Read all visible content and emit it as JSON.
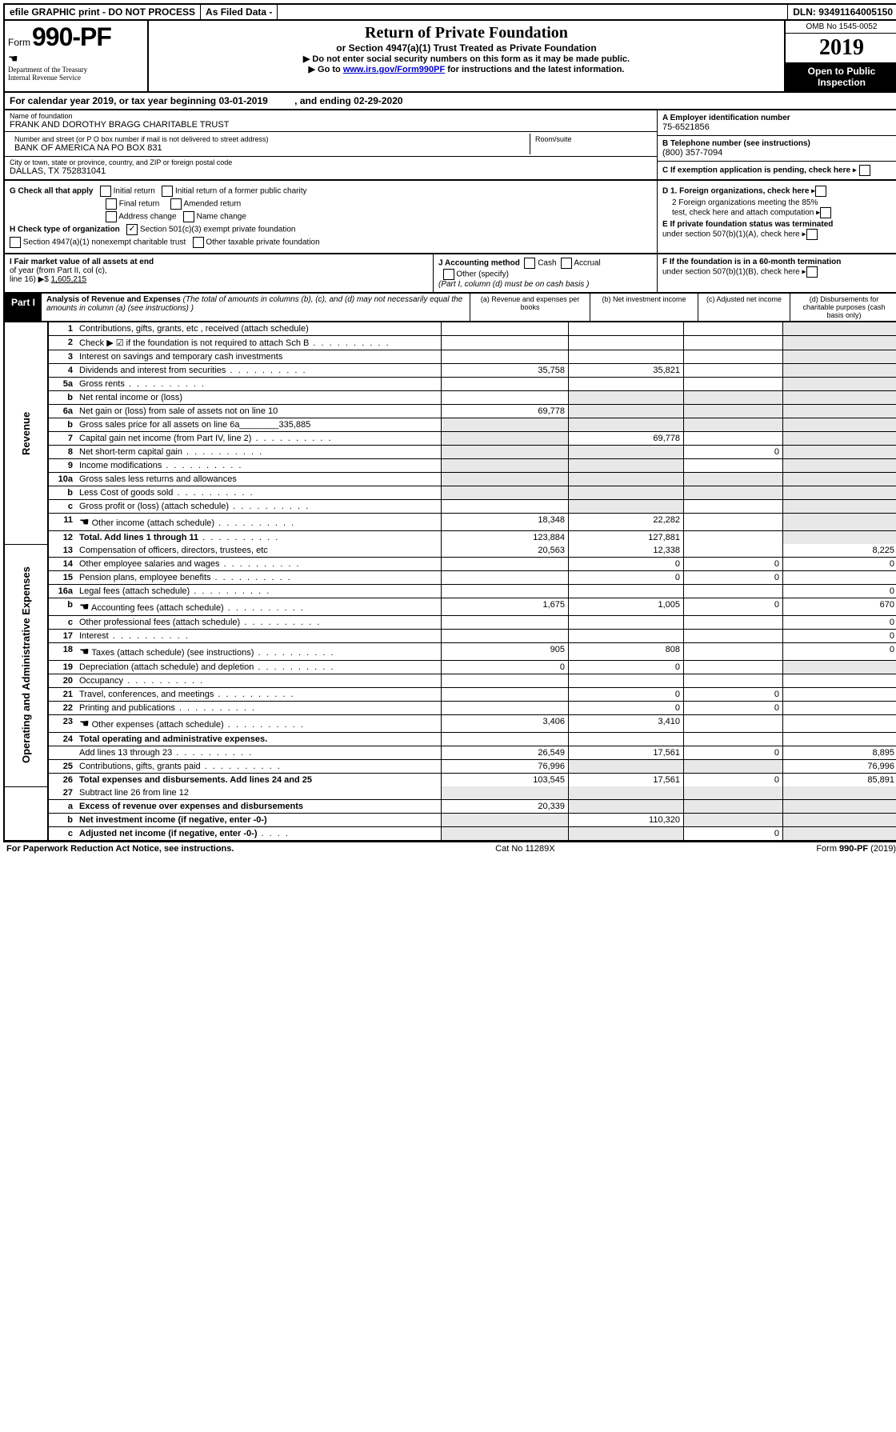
{
  "header": {
    "efile_label": "efile GRAPHIC print - DO NOT PROCESS",
    "as_filed_label": "As Filed Data -",
    "dln_label": "DLN: 93491164005150",
    "form_word": "Form",
    "form_number": "990-PF",
    "dept1": "Department of the Treasury",
    "dept2": "Internal Revenue Service",
    "title": "Return of Private Foundation",
    "subtitle": "or Section 4947(a)(1) Trust Treated as Private Foundation",
    "instr1": "▶ Do not enter social security numbers on this form as it may be made public.",
    "instr2_prefix": "▶ Go to ",
    "instr2_link": "www.irs.gov/Form990PF",
    "instr2_suffix": " for instructions and the latest information.",
    "omb": "OMB No 1545-0052",
    "year": "2019",
    "open_inspect1": "Open to Public",
    "open_inspect2": "Inspection"
  },
  "calyear": {
    "text1": "For calendar year 2019, or tax year beginning 03-01-2019",
    "text2": ", and ending 02-29-2020"
  },
  "meta": {
    "name_label": "Name of foundation",
    "name_value": "FRANK AND DOROTHY BRAGG CHARITABLE TRUST",
    "ein_label": "A Employer identification number",
    "ein_value": "75-6521856",
    "street_label": "Number and street (or P O  box number if mail is not delivered to street address)",
    "street_value": "BANK OF AMERICA NA PO BOX 831",
    "room_label": "Room/suite",
    "tel_label": "B Telephone number (see instructions)",
    "tel_value": "(800) 357-7094",
    "city_label": "City or town, state or province, country, and ZIP or foreign postal code",
    "city_value": "DALLAS, TX  752831041",
    "c_pending": "C If exemption application is pending, check here"
  },
  "checks": {
    "g_label": "G Check all that apply",
    "initial": "Initial return",
    "initial_former": "Initial return of a former public charity",
    "final": "Final return",
    "amended": "Amended return",
    "addr_change": "Address change",
    "name_change": "Name change",
    "h_label": "H Check type of organization",
    "h_501c3": "Section 501(c)(3) exempt private foundation",
    "h_4947": "Section 4947(a)(1) nonexempt charitable trust",
    "h_other_tax": "Other taxable private foundation",
    "d1": "D 1. Foreign organizations, check here",
    "d2a": "2 Foreign organizations meeting the 85%",
    "d2b": "test, check here and attach computation",
    "e1": "E  If private foundation status was terminated",
    "e2": "under section 507(b)(1)(A), check here"
  },
  "ijf": {
    "i1": "I Fair market value of all assets at end",
    "i2": "of year (from Part II, col  (c),",
    "i3": "line 16) ▶$ ",
    "i_value": "1,605,215",
    "j_label": "J Accounting method",
    "j_cash": "Cash",
    "j_accrual": "Accrual",
    "j_other": "Other (specify)",
    "j_note": "(Part I, column (d) must be on cash basis )",
    "f1": "F  If the foundation is in a 60-month termination",
    "f2": "under section 507(b)(1)(B), check here"
  },
  "part1": {
    "label": "Part I",
    "title": "Analysis of Revenue and Expenses",
    "title_note": " (The total of amounts in columns (b), (c), and (d) may not necessarily equal the amounts in column (a) (see instructions) )",
    "col_a": "(a)  Revenue and expenses per books",
    "col_b": "(b) Net investment income",
    "col_c": "(c) Adjusted net income",
    "col_d": "(d) Disbursements for charitable purposes (cash basis only)"
  },
  "side": {
    "revenue": "Revenue",
    "expenses": "Operating and Administrative Expenses"
  },
  "rows": [
    {
      "n": "1",
      "d": "Contributions, gifts, grants, etc , received (attach schedule)"
    },
    {
      "n": "2",
      "d": "Check ▶ ☑ if the foundation is not required to attach Sch B",
      "dots": true,
      "notreq": true
    },
    {
      "n": "3",
      "d": "Interest on savings and temporary cash investments"
    },
    {
      "n": "4",
      "d": "Dividends and interest from securities",
      "dots": true,
      "a": "35,758",
      "b": "35,821"
    },
    {
      "n": "5a",
      "d": "Gross rents",
      "dots": true
    },
    {
      "n": "b",
      "d": "Net rental income or (loss)",
      "shade_bcd": true
    },
    {
      "n": "6a",
      "d": "Net gain or (loss) from sale of assets not on line 10",
      "a": "69,778",
      "shade_bcd": true
    },
    {
      "n": "b",
      "d": "Gross sales price for all assets on line 6a________335,885",
      "shade_all": true
    },
    {
      "n": "7",
      "d": "Capital gain net income (from Part IV, line 2)",
      "dots": true,
      "b": "69,778",
      "shade_a": true
    },
    {
      "n": "8",
      "d": "Net short-term capital gain",
      "dots": true,
      "c": "0",
      "shade_ab": true
    },
    {
      "n": "9",
      "d": "Income modifications",
      "dots": true,
      "shade_ab": true
    },
    {
      "n": "10a",
      "d": "Gross sales less returns and allowances",
      "shade_all": true
    },
    {
      "n": "b",
      "d": "Less  Cost of goods sold",
      "dots": true,
      "shade_all": true
    },
    {
      "n": "c",
      "d": "Gross profit or (loss) (attach schedule)",
      "dots": true,
      "shade_b": true
    },
    {
      "n": "11",
      "d": "Other income (attach schedule)",
      "dots": true,
      "icon": true,
      "a": "18,348",
      "b": "22,282"
    },
    {
      "n": "12",
      "d": "Total. Add lines 1 through 11",
      "dots": true,
      "bold": true,
      "a": "123,884",
      "b": "127,881",
      "shade_cd": false
    }
  ],
  "exp_rows": [
    {
      "n": "13",
      "d": "Compensation of officers, directors, trustees, etc",
      "a": "20,563",
      "b": "12,338",
      "dcol": "8,225"
    },
    {
      "n": "14",
      "d": "Other employee salaries and wages",
      "dots": true,
      "b": "0",
      "c": "0",
      "dcol": "0"
    },
    {
      "n": "15",
      "d": "Pension plans, employee benefits",
      "dots": true,
      "b": "0",
      "c": "0"
    },
    {
      "n": "16a",
      "d": "Legal fees (attach schedule)",
      "dots": true,
      "dcol": "0"
    },
    {
      "n": "b",
      "d": "Accounting fees (attach schedule)",
      "dots": true,
      "icon": true,
      "a": "1,675",
      "b": "1,005",
      "c": "0",
      "dcol": "670"
    },
    {
      "n": "c",
      "d": "Other professional fees (attach schedule)",
      "dots": true,
      "dcol": "0"
    },
    {
      "n": "17",
      "d": "Interest",
      "dots": true,
      "dcol": "0"
    },
    {
      "n": "18",
      "d": "Taxes (attach schedule) (see instructions)",
      "dots": true,
      "icon": true,
      "a": "905",
      "b": "808",
      "dcol": "0"
    },
    {
      "n": "19",
      "d": "Depreciation (attach schedule) and depletion",
      "dots": true,
      "a": "0",
      "b": "0",
      "shade_d": true
    },
    {
      "n": "20",
      "d": "Occupancy",
      "dots": true
    },
    {
      "n": "21",
      "d": "Travel, conferences, and meetings",
      "dots": true,
      "b": "0",
      "c": "0"
    },
    {
      "n": "22",
      "d": "Printing and publications",
      "dots": true,
      "b": "0",
      "c": "0"
    },
    {
      "n": "23",
      "d": "Other expenses (attach schedule)",
      "dots": true,
      "icon": true,
      "a": "3,406",
      "b": "3,410"
    },
    {
      "n": "24",
      "d": "Total operating and administrative expenses.",
      "bold": true
    },
    {
      "n": "",
      "d": "Add lines 13 through 23",
      "dots": true,
      "a": "26,549",
      "b": "17,561",
      "c": "0",
      "dcol": "8,895"
    },
    {
      "n": "25",
      "d": "Contributions, gifts, grants paid",
      "dots": true,
      "a": "76,996",
      "dcol": "76,996",
      "shade_bc": true
    },
    {
      "n": "26",
      "d": "Total expenses and disbursements. Add lines 24 and 25",
      "bold": true,
      "a": "103,545",
      "b": "17,561",
      "c": "0",
      "dcol": "85,891"
    }
  ],
  "bottom_rows": [
    {
      "n": "27",
      "d": "Subtract line 26 from line 12",
      "shade_all": true
    },
    {
      "n": "a",
      "d": "Excess of revenue over expenses and disbursements",
      "bold": true,
      "a": "20,339",
      "shade_bcd": true
    },
    {
      "n": "b",
      "d": "Net investment income (if negative, enter -0-)",
      "bold": true,
      "b": "110,320",
      "shade_acd": true
    },
    {
      "n": "c",
      "d": "Adjusted net income (if negative, enter -0-)",
      "bold": true,
      "dots": true,
      "c": "0",
      "shade_abd": true
    }
  ],
  "footer": {
    "left": "For Paperwork Reduction Act Notice, see instructions.",
    "center": "Cat No 11289X",
    "right": "Form 990-PF (2019)"
  }
}
